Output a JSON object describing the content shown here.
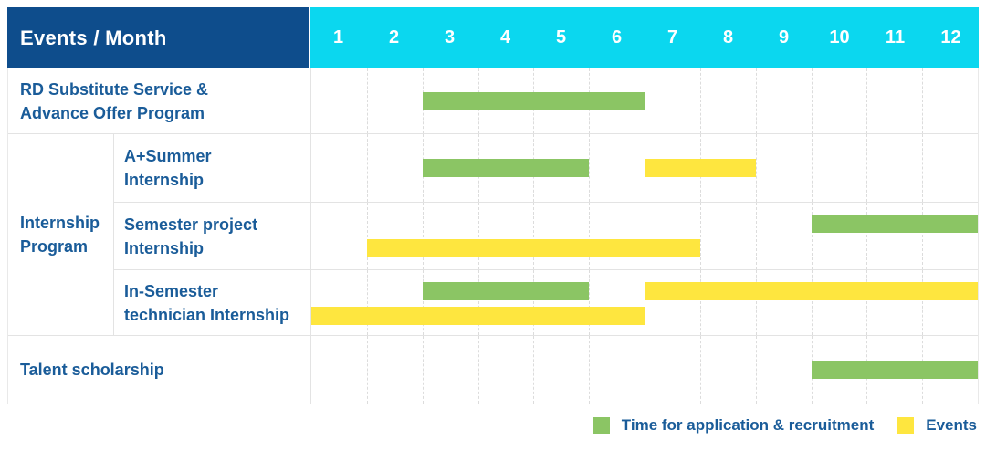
{
  "title": "Events / Month",
  "months": [
    "1",
    "2",
    "3",
    "4",
    "5",
    "6",
    "7",
    "8",
    "9",
    "10",
    "11",
    "12"
  ],
  "colors": {
    "header_navy": "#0E4D8C",
    "header_cyan": "#0BD7EF",
    "green": "#8BC564",
    "yellow": "#FEE63F",
    "label_text": "#1A5C99"
  },
  "legend": [
    {
      "swatch": "green",
      "label": "Time for application & recruitment"
    },
    {
      "swatch": "yellow",
      "label": "Events"
    }
  ],
  "chart_data": {
    "type": "gantt",
    "title": "Events / Month",
    "x_axis": {
      "label": "Month",
      "range": [
        1,
        12
      ],
      "ticks": [
        1,
        2,
        3,
        4,
        5,
        6,
        7,
        8,
        9,
        10,
        11,
        12
      ]
    },
    "series_legend": {
      "green": "Time for application & recruitment",
      "yellow": "Events"
    },
    "rows": [
      {
        "group": null,
        "label": "RD Substitute Service &\nAdvance Offer Program",
        "lines": 1,
        "bars": [
          {
            "color": "green",
            "series": "Time for application & recruitment",
            "start_month": 3,
            "end_month": 6,
            "line": 1
          }
        ]
      },
      {
        "group": "Internship Program",
        "label": "A+Summer\nInternship",
        "lines": 1,
        "bars": [
          {
            "color": "green",
            "series": "Time for application & recruitment",
            "start_month": 3,
            "end_month": 5,
            "line": 1
          },
          {
            "color": "yellow",
            "series": "Events",
            "start_month": 7,
            "end_month": 8,
            "line": 1
          }
        ]
      },
      {
        "group": "Internship Program",
        "label": "Semester project\nInternship",
        "lines": 2,
        "bars": [
          {
            "color": "green",
            "series": "Time for application & recruitment",
            "start_month": 10,
            "end_month": 12,
            "line": 1
          },
          {
            "color": "yellow",
            "series": "Events",
            "start_month": 2,
            "end_month": 7,
            "line": 2
          }
        ]
      },
      {
        "group": "Internship Program",
        "label": "In-Semester\ntechnician Internship",
        "lines": 2,
        "bars": [
          {
            "color": "green",
            "series": "Time for application & recruitment",
            "start_month": 3,
            "end_month": 5,
            "line": 1
          },
          {
            "color": "yellow",
            "series": "Events",
            "start_month": 7,
            "end_month": 12,
            "line": 1
          },
          {
            "color": "yellow",
            "series": "Events",
            "start_month": 1,
            "end_month": 6,
            "line": 2
          }
        ]
      },
      {
        "group": null,
        "label": "Talent scholarship",
        "lines": 1,
        "bars": [
          {
            "color": "green",
            "series": "Time for application & recruitment",
            "start_month": 10,
            "end_month": 12,
            "line": 1
          }
        ]
      }
    ]
  }
}
